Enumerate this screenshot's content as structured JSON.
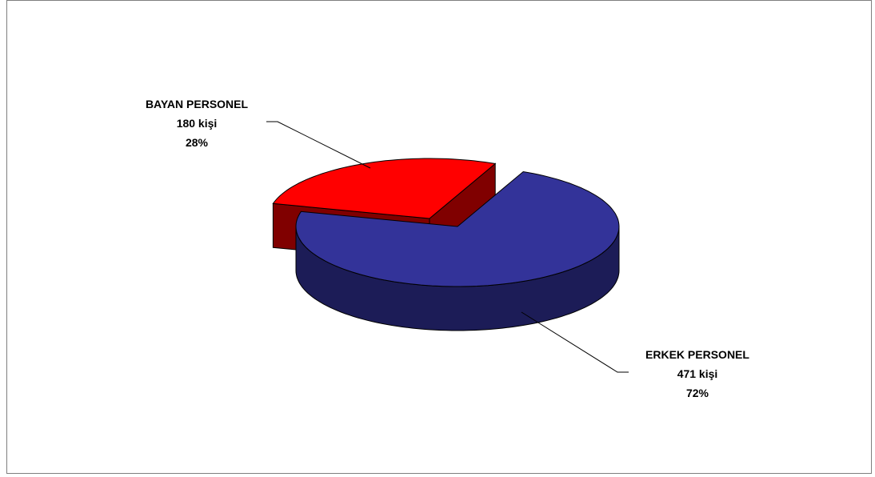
{
  "chart_data": {
    "type": "pie",
    "style": "3d-exploded",
    "slices": [
      {
        "name": "ERKEK PERSONEL",
        "value": 471,
        "value_label": "471 kişi",
        "percent_label": "72%",
        "color": "#333399",
        "side_color": "#1c1c57"
      },
      {
        "name": "BAYAN PERSONEL",
        "value": 180,
        "value_label": "180 kişi",
        "percent_label": "28%",
        "color": "#ff0000",
        "side_color": "#800000"
      }
    ],
    "legend": "none",
    "border_color": "#7f7f7f"
  }
}
